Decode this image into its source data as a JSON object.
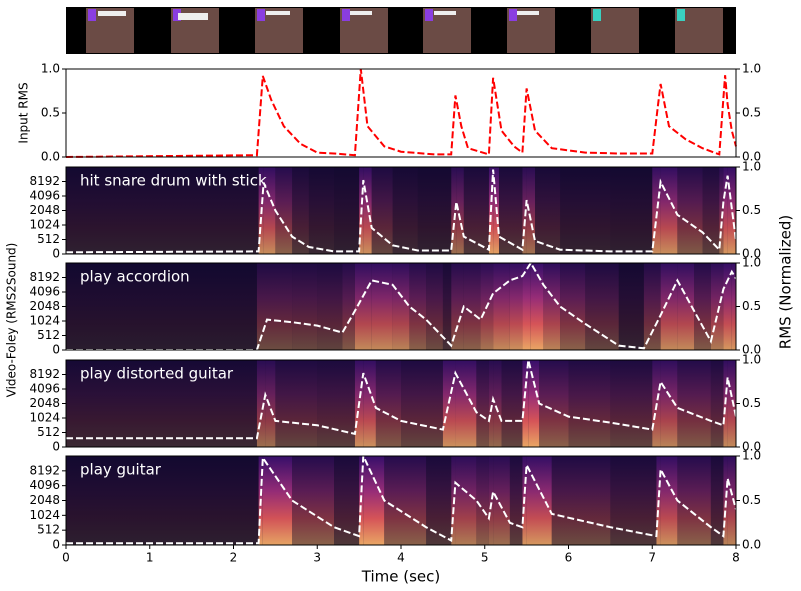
{
  "figure": {
    "ylabel": "Video-Foley (RMS2Sound)",
    "y2label": "RMS (Normalized)"
  },
  "chart_data": [
    {
      "type": "line",
      "ylabel": "Input RMS",
      "xlim": [
        0,
        8
      ],
      "ylim": [
        0,
        1
      ],
      "yticks": [
        {
          "value": 0,
          "label": "0.0"
        },
        {
          "value": 0.5,
          "label": "0.5"
        },
        {
          "value": 1,
          "label": "1.0"
        }
      ],
      "y2lim": [
        0,
        1
      ],
      "y2ticks": [
        {
          "value": 0,
          "label": "0.0"
        },
        {
          "value": 0.5,
          "label": "0.5"
        },
        {
          "value": 1,
          "label": "1.0"
        }
      ],
      "series": [
        {
          "color": "#ff0000",
          "line_style": "dashed",
          "x": [
            0,
            2.28,
            2.35,
            2.45,
            2.6,
            2.8,
            3.0,
            3.2,
            3.45,
            3.52,
            3.6,
            3.8,
            4.0,
            4.4,
            4.6,
            4.65,
            4.72,
            4.8,
            5.05,
            5.1,
            5.2,
            5.35,
            5.45,
            5.5,
            5.6,
            5.8,
            6.2,
            6.6,
            7.0,
            7.07,
            7.1,
            7.2,
            7.4,
            7.6,
            7.8,
            7.87,
            7.9,
            7.95,
            8.0
          ],
          "values": [
            0,
            0.02,
            0.92,
            0.65,
            0.35,
            0.15,
            0.05,
            0.04,
            0.02,
            1.0,
            0.35,
            0.12,
            0.06,
            0.03,
            0.03,
            0.7,
            0.35,
            0.1,
            0.03,
            0.9,
            0.3,
            0.12,
            0.05,
            0.78,
            0.3,
            0.1,
            0.05,
            0.04,
            0.04,
            0.6,
            0.83,
            0.35,
            0.2,
            0.1,
            0.03,
            0.93,
            0.6,
            0.3,
            0.12
          ]
        }
      ]
    },
    {
      "type": "spectrogram",
      "annotation": "hit snare drum with stick",
      "colormap": "magma",
      "xlim": [
        0,
        8
      ],
      "yscale": "symlog",
      "linthresh": 512,
      "ylim": [
        0,
        16384
      ],
      "yticks": [
        0,
        512,
        1024,
        2048,
        4096,
        8192
      ],
      "y2lim": [
        0,
        1
      ],
      "y2ticks": [
        {
          "value": 0,
          "label": "0.0"
        },
        {
          "value": 0.5,
          "label": "0.5"
        },
        {
          "value": 1,
          "label": "1.0"
        }
      ],
      "series": [
        {
          "color": "#ffffff",
          "line_style": "dashed",
          "axis": "y2",
          "x": [
            0,
            2.3,
            2.36,
            2.5,
            2.7,
            2.9,
            3.2,
            3.5,
            3.55,
            3.65,
            3.9,
            4.2,
            4.6,
            4.66,
            4.75,
            5.05,
            5.1,
            5.17,
            5.45,
            5.5,
            5.6,
            5.9,
            6.5,
            7.0,
            7.1,
            7.3,
            7.6,
            7.8,
            7.85,
            7.9,
            8.0
          ],
          "values": [
            0.02,
            0.03,
            0.82,
            0.5,
            0.2,
            0.08,
            0.03,
            0.03,
            0.85,
            0.3,
            0.1,
            0.04,
            0.04,
            0.6,
            0.2,
            0.05,
            0.97,
            0.2,
            0.05,
            0.62,
            0.15,
            0.05,
            0.03,
            0.03,
            0.83,
            0.45,
            0.25,
            0.05,
            0.6,
            0.9,
            0.15
          ]
        }
      ]
    },
    {
      "type": "spectrogram",
      "annotation": "play accordion",
      "colormap": "magma",
      "xlim": [
        0,
        8
      ],
      "yscale": "symlog",
      "linthresh": 512,
      "ylim": [
        0,
        16384
      ],
      "yticks": [
        0,
        512,
        1024,
        2048,
        4096,
        8192
      ],
      "y2lim": [
        0,
        1
      ],
      "y2ticks": [
        {
          "value": 0,
          "label": "0.0"
        },
        {
          "value": 0.5,
          "label": "0.5"
        },
        {
          "value": 1,
          "label": "1.0"
        }
      ],
      "series": [
        {
          "color": "#ffffff",
          "line_style": "dashed",
          "axis": "y2",
          "x": [
            0,
            2.28,
            2.4,
            2.7,
            3.0,
            3.3,
            3.45,
            3.65,
            3.9,
            4.1,
            4.3,
            4.5,
            4.6,
            4.75,
            4.95,
            5.1,
            5.3,
            5.45,
            5.55,
            5.7,
            5.9,
            6.2,
            6.6,
            6.9,
            7.1,
            7.3,
            7.5,
            7.7,
            7.85,
            7.95,
            8.0
          ],
          "values": [
            0,
            0,
            0.35,
            0.32,
            0.28,
            0.2,
            0.45,
            0.8,
            0.75,
            0.5,
            0.35,
            0.15,
            0.05,
            0.5,
            0.35,
            0.65,
            0.8,
            0.85,
            1.0,
            0.75,
            0.5,
            0.3,
            0.05,
            0.02,
            0.4,
            0.8,
            0.45,
            0.1,
            0.7,
            0.9,
            0.82
          ]
        }
      ]
    },
    {
      "type": "spectrogram",
      "annotation": "play distorted guitar",
      "colormap": "magma",
      "xlim": [
        0,
        8
      ],
      "yscale": "symlog",
      "linthresh": 512,
      "ylim": [
        0,
        16384
      ],
      "yticks": [
        0,
        512,
        1024,
        2048,
        4096,
        8192
      ],
      "y2lim": [
        0,
        1
      ],
      "y2ticks": [
        {
          "value": 0,
          "label": "0.0"
        },
        {
          "value": 0.5,
          "label": "0.5"
        },
        {
          "value": 1,
          "label": "1.0"
        }
      ],
      "series": [
        {
          "color": "#ffffff",
          "line_style": "dashed",
          "axis": "y2",
          "x": [
            0,
            2.28,
            2.38,
            2.5,
            3.0,
            3.45,
            3.55,
            3.7,
            4.0,
            4.5,
            4.65,
            4.9,
            5.05,
            5.1,
            5.2,
            5.45,
            5.52,
            5.65,
            6.0,
            6.5,
            7.0,
            7.1,
            7.3,
            7.7,
            7.85,
            7.9,
            8.0
          ],
          "values": [
            0.1,
            0.1,
            0.6,
            0.3,
            0.25,
            0.15,
            0.85,
            0.45,
            0.3,
            0.2,
            0.85,
            0.4,
            0.3,
            0.55,
            0.3,
            0.3,
            1.0,
            0.5,
            0.35,
            0.28,
            0.2,
            0.75,
            0.45,
            0.3,
            0.25,
            0.8,
            0.35
          ]
        }
      ]
    },
    {
      "type": "spectrogram",
      "annotation": "play guitar",
      "colormap": "magma",
      "xlim": [
        0,
        8
      ],
      "xticks": [
        0,
        1,
        2,
        3,
        4,
        5,
        6,
        7,
        8
      ],
      "xlabel": "Time (sec)",
      "yscale": "symlog",
      "linthresh": 512,
      "ylim": [
        0,
        16384
      ],
      "yticks": [
        0,
        512,
        1024,
        2048,
        4096,
        8192
      ],
      "y2lim": [
        0,
        1
      ],
      "y2ticks": [
        {
          "value": 0,
          "label": "0.0"
        },
        {
          "value": 0.5,
          "label": "0.5"
        },
        {
          "value": 1,
          "label": "1.0"
        }
      ],
      "series": [
        {
          "color": "#ffffff",
          "line_style": "dashed",
          "axis": "y2",
          "x": [
            0,
            2.3,
            2.35,
            2.7,
            3.2,
            3.5,
            3.55,
            3.8,
            4.3,
            4.6,
            4.65,
            4.9,
            5.05,
            5.1,
            5.3,
            5.45,
            5.5,
            5.8,
            6.5,
            7.05,
            7.1,
            7.3,
            7.7,
            7.85,
            7.9,
            8.0
          ],
          "values": [
            0.02,
            0.02,
            0.98,
            0.5,
            0.2,
            0.1,
            1.0,
            0.5,
            0.2,
            0.05,
            0.7,
            0.5,
            0.3,
            0.6,
            0.25,
            0.2,
            0.9,
            0.35,
            0.2,
            0.1,
            0.85,
            0.5,
            0.2,
            0.1,
            0.75,
            0.4
          ]
        }
      ]
    }
  ]
}
